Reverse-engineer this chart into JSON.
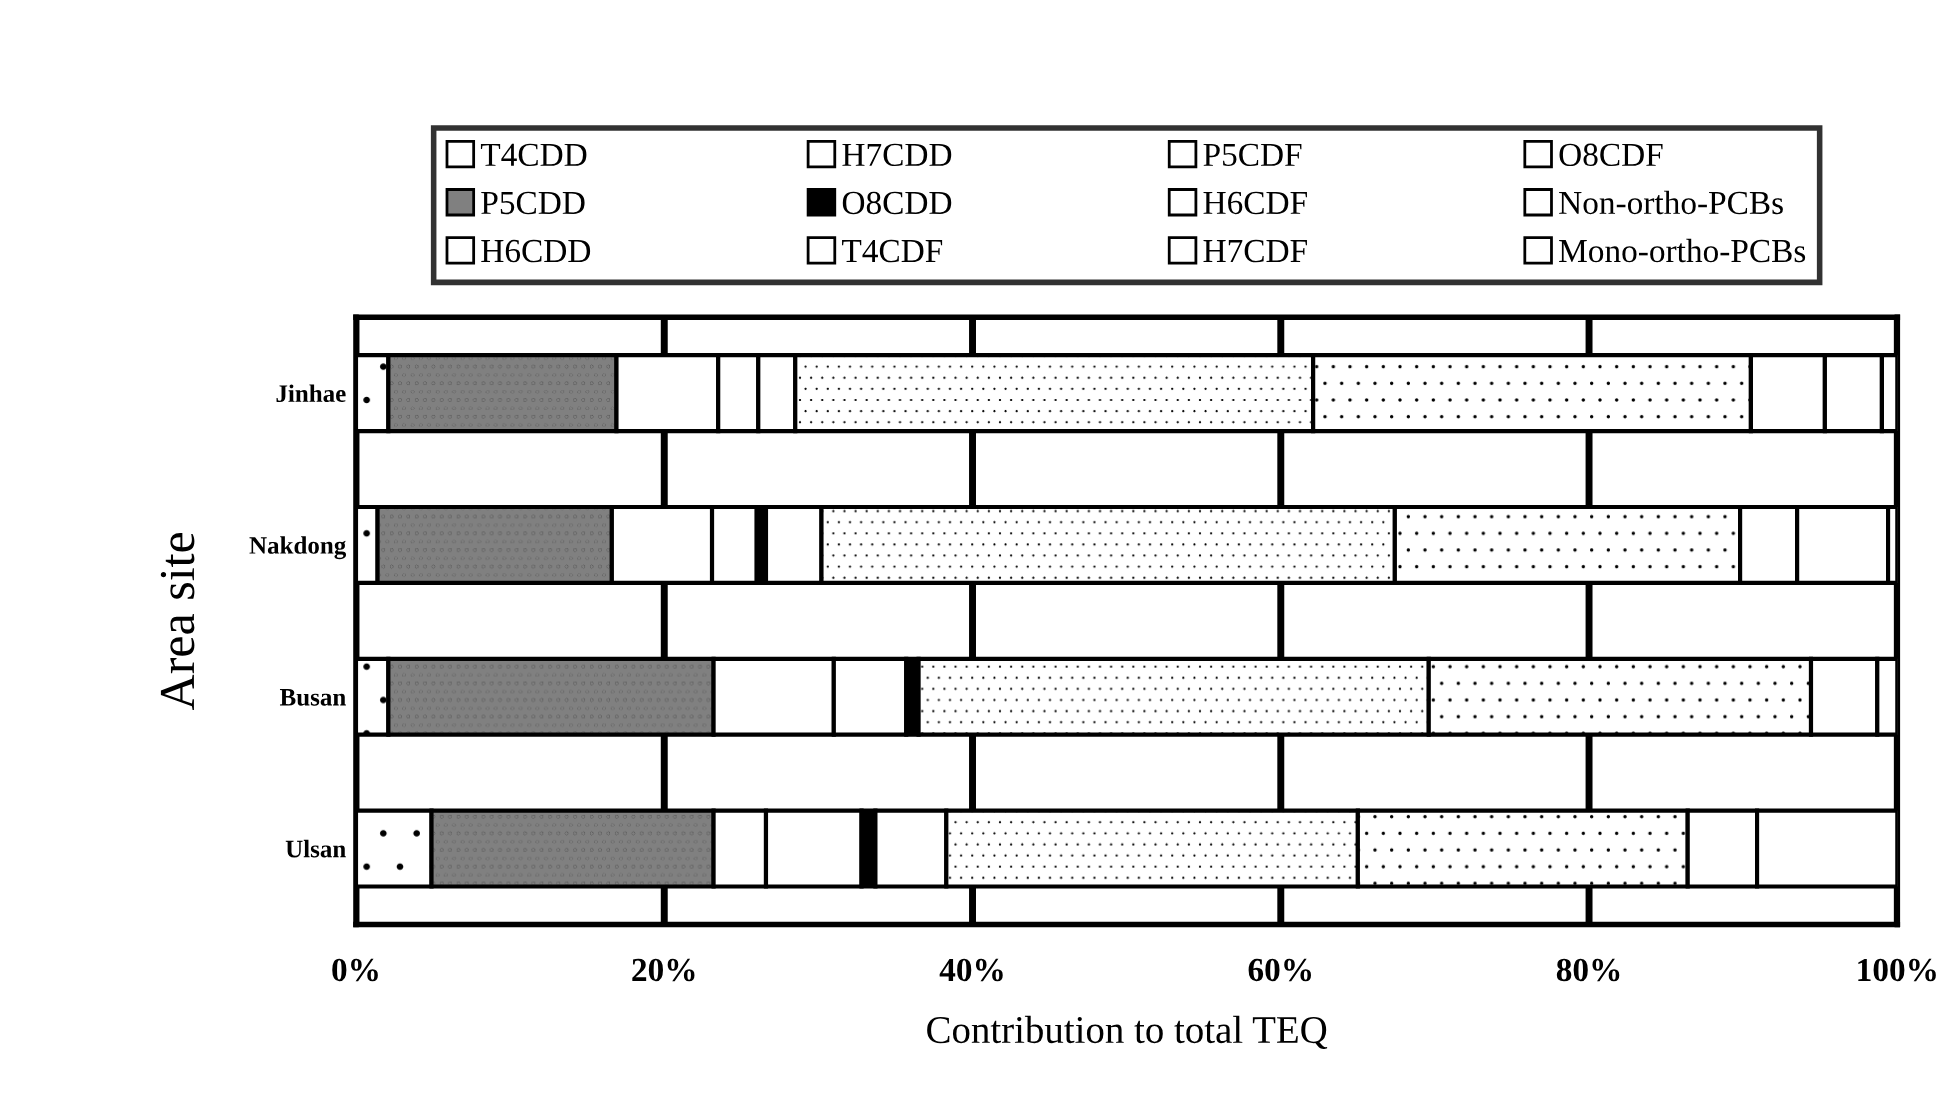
{
  "chart_data": {
    "type": "bar",
    "orientation": "horizontal",
    "stacked": true,
    "xlabel": "Contribution to total TEQ",
    "ylabel": "Area site",
    "categories": [
      "Jinhae",
      "Nakdong",
      "Busan",
      "Ulsan"
    ],
    "xlim": [
      0,
      100
    ],
    "xticks": [
      {
        "value": 0,
        "label": "0%"
      },
      {
        "value": 20,
        "label": "20%"
      },
      {
        "value": 40,
        "label": "40%"
      },
      {
        "value": 60,
        "label": "60%"
      },
      {
        "value": 80,
        "label": "80%"
      },
      {
        "value": 100,
        "label": "100%"
      }
    ],
    "grid": "x",
    "legend": "top",
    "series": [
      {
        "name": "T4CDD",
        "color": "#ffffff",
        "values": [
          2.1,
          1.4,
          2.1,
          4.9
        ]
      },
      {
        "name": "P5CDD",
        "color": "#808080",
        "values": [
          14.8,
          15.2,
          21.1,
          18.3
        ]
      },
      {
        "name": "H6CDD",
        "color": "#ffffff",
        "values": [
          6.6,
          6.5,
          7.8,
          3.4
        ]
      },
      {
        "name": "H7CDD",
        "color": "#ffffff",
        "values": [
          2.6,
          2.9,
          4.7,
          6.2
        ]
      },
      {
        "name": "O8CDD",
        "color": "#000000",
        "values": [
          0,
          0.6,
          0.8,
          0.9
        ]
      },
      {
        "name": "T4CDF",
        "color": "#ffffff",
        "values": [
          2.4,
          3.6,
          0,
          4.6
        ]
      },
      {
        "name": "P5CDF",
        "color": "#ffffff",
        "values": [
          33.6,
          37.2,
          33.1,
          26.7
        ]
      },
      {
        "name": "H6CDF",
        "color": "#ffffff",
        "values": [
          28.4,
          22.4,
          24.8,
          21.4
        ]
      },
      {
        "name": "H7CDF",
        "color": "#ffffff",
        "values": [
          4.8,
          3.7,
          4.3,
          4.5
        ]
      },
      {
        "name": "O8CDF",
        "color": "#ffffff",
        "values": [
          0,
          0,
          0,
          0
        ]
      },
      {
        "name": "Non-ortho-PCBs",
        "color": "#ffffff",
        "values": [
          3.7,
          5.9,
          0,
          9.1
        ]
      },
      {
        "name": "Mono-ortho-PCBs",
        "color": "#ffffff",
        "values": [
          1.0,
          0.6,
          1.3,
          0
        ]
      }
    ]
  }
}
